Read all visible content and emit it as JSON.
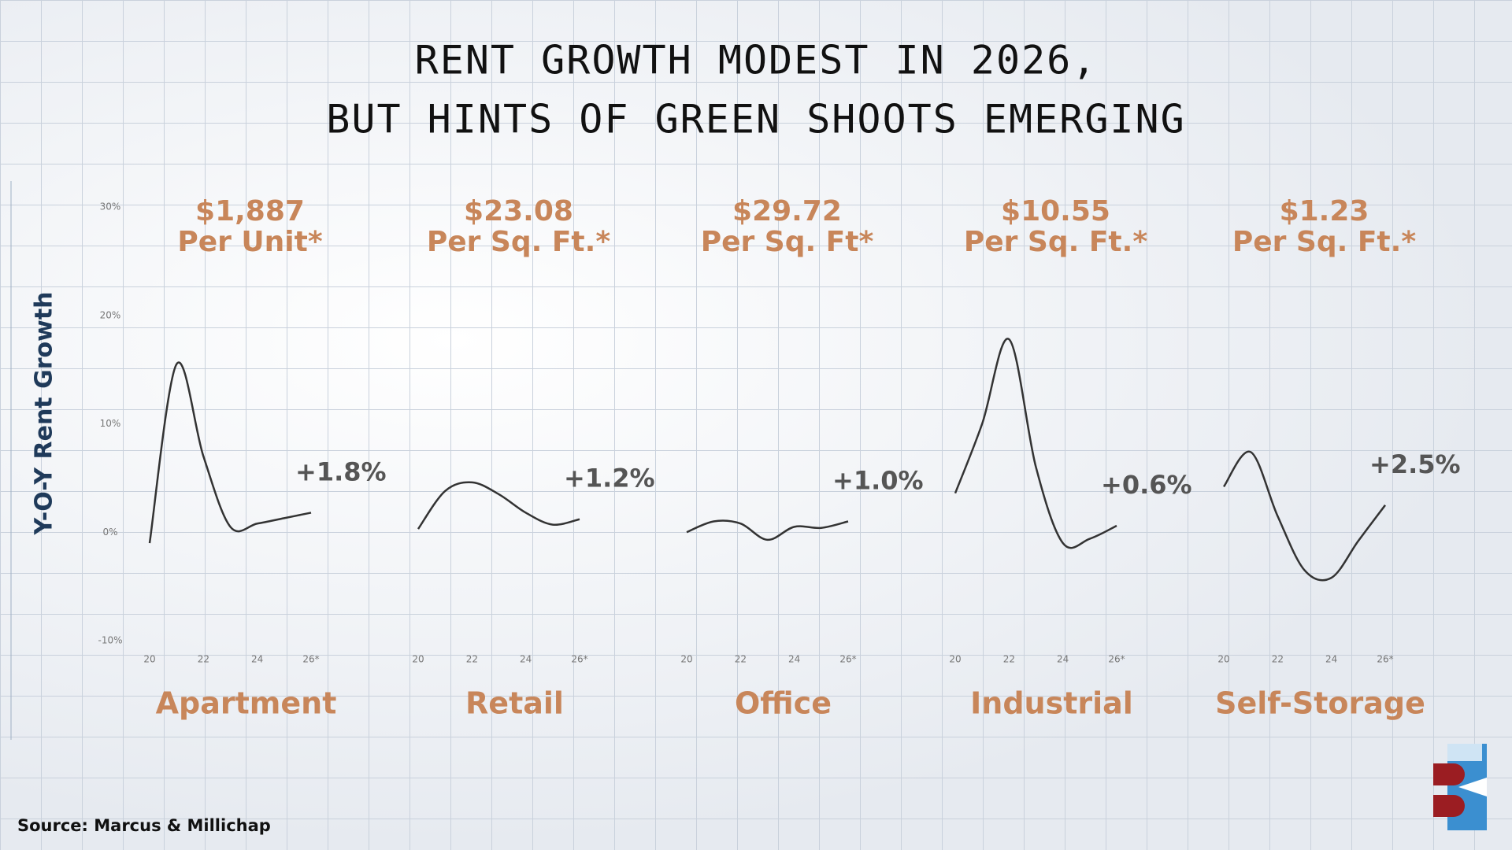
{
  "chart_data": {
    "type": "line",
    "title": [
      "RENT GROWTH MODEST IN 2026,",
      "BUT HINTS OF GREEN SHOOTS EMERGING"
    ],
    "ylabel": "Y-O-Y Rent Growth",
    "source": "Source: Marcus & Millichap",
    "ylim": [
      -10,
      30
    ],
    "yticks": [
      {
        "value": 30,
        "label": "30%"
      },
      {
        "value": 20,
        "label": "20%"
      },
      {
        "value": 10,
        "label": "10%"
      },
      {
        "value": 0,
        "label": "0%"
      },
      {
        "value": -10,
        "label": "-10%"
      }
    ],
    "xlim": [
      20,
      26
    ],
    "xticks": [
      20,
      22,
      24,
      {
        "value": 26,
        "label": "26*"
      }
    ],
    "x": [
      20,
      21,
      22,
      23,
      24,
      25,
      26
    ],
    "color": "#333333",
    "label_color": "#c8865a",
    "panels": [
      {
        "name": "Apartment",
        "price": "$1,887",
        "unit": "Per Unit*",
        "values": [
          -1.0,
          15.5,
          7.0,
          0.5,
          0.8,
          1.3,
          1.8
        ],
        "value_labels": [
          null,
          null,
          null,
          null,
          null,
          null,
          "+1.8%"
        ]
      },
      {
        "name": "Retail",
        "price": "$23.08",
        "unit": "Per Sq. Ft.*",
        "values": [
          0.3,
          3.8,
          4.6,
          3.5,
          1.8,
          0.7,
          1.2
        ],
        "value_labels": [
          null,
          null,
          null,
          null,
          null,
          null,
          "+1.2%"
        ]
      },
      {
        "name": "Office",
        "price": "$29.72",
        "unit": "Per Sq. Ft*",
        "values": [
          0.0,
          1.0,
          0.8,
          -0.7,
          0.5,
          0.4,
          1.0
        ],
        "value_labels": [
          null,
          null,
          null,
          null,
          null,
          null,
          "+1.0%"
        ]
      },
      {
        "name": "Industrial",
        "price": "$10.55",
        "unit": "Per Sq. Ft.*",
        "values": [
          3.6,
          10.0,
          17.8,
          6.0,
          -1.0,
          -0.6,
          0.6
        ],
        "value_labels": [
          null,
          null,
          null,
          null,
          null,
          null,
          "+0.6%"
        ]
      },
      {
        "name": "Self-Storage",
        "price": "$1.23",
        "unit": "Per Sq. Ft.*",
        "values": [
          4.2,
          7.4,
          1.5,
          -3.5,
          -4.2,
          -0.8,
          2.5
        ],
        "value_labels": [
          null,
          null,
          null,
          null,
          null,
          null,
          "+2.5%"
        ]
      }
    ]
  }
}
